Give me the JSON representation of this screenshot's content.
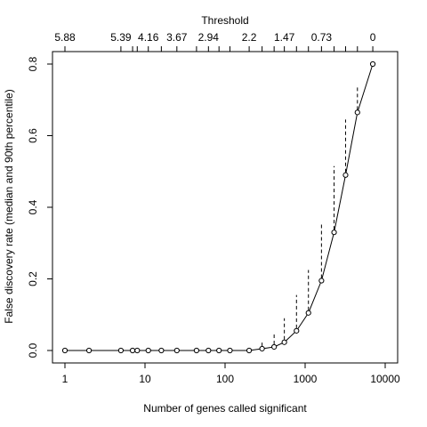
{
  "chart_data": {
    "type": "scatter",
    "title": "",
    "xlabel": "Number of genes called significant",
    "ylabel": "False discovery rate (median and 90th percentile)",
    "top_axis_label": "Threshold",
    "x_scale": "log",
    "xlim": [
      1,
      10000
    ],
    "ylim": [
      0,
      0.8
    ],
    "grid": false,
    "x_ticks": [
      1,
      10,
      100,
      1000,
      10000
    ],
    "x_tick_labels": [
      "1",
      "10",
      "100",
      "1000",
      "10000"
    ],
    "y_ticks": [
      0.0,
      0.2,
      0.4,
      0.6,
      0.8
    ],
    "y_tick_labels": [
      "0.0",
      "0.2",
      "0.4",
      "0.6",
      "0.8"
    ],
    "top_ticks": [
      {
        "x": 1,
        "label": "5.88"
      },
      {
        "x": 5,
        "label": "5.39"
      },
      {
        "x": 7,
        "label": ""
      },
      {
        "x": 8,
        "label": ""
      },
      {
        "x": 11,
        "label": "4.16"
      },
      {
        "x": 16,
        "label": ""
      },
      {
        "x": 25,
        "label": "3.67"
      },
      {
        "x": 44,
        "label": ""
      },
      {
        "x": 62,
        "label": "2.94"
      },
      {
        "x": 84,
        "label": ""
      },
      {
        "x": 115,
        "label": ""
      },
      {
        "x": 200,
        "label": "2.2"
      },
      {
        "x": 290,
        "label": ""
      },
      {
        "x": 410,
        "label": ""
      },
      {
        "x": 550,
        "label": "1.47"
      },
      {
        "x": 780,
        "label": ""
      },
      {
        "x": 1100,
        "label": ""
      },
      {
        "x": 1600,
        "label": "0.73"
      },
      {
        "x": 2300,
        "label": ""
      },
      {
        "x": 3200,
        "label": ""
      },
      {
        "x": 4500,
        "label": ""
      },
      {
        "x": 7000,
        "label": "0"
      }
    ],
    "series": [
      {
        "points": [
          {
            "x": 1,
            "median": 0.0,
            "p90": 0.0
          },
          {
            "x": 2,
            "median": 0.0,
            "p90": 0.0
          },
          {
            "x": 5,
            "median": 0.0,
            "p90": 0.0
          },
          {
            "x": 7,
            "median": 0.0,
            "p90": 0.0
          },
          {
            "x": 8,
            "median": 0.0,
            "p90": 0.0
          },
          {
            "x": 11,
            "median": 0.0,
            "p90": 0.0
          },
          {
            "x": 16,
            "median": 0.0,
            "p90": 0.0
          },
          {
            "x": 25,
            "median": 0.0,
            "p90": 0.0
          },
          {
            "x": 44,
            "median": 0.0,
            "p90": 0.0
          },
          {
            "x": 62,
            "median": 0.0,
            "p90": 0.0
          },
          {
            "x": 84,
            "median": 0.0,
            "p90": 0.0
          },
          {
            "x": 115,
            "median": 0.0,
            "p90": 0.0
          },
          {
            "x": 200,
            "median": 0.0,
            "p90": 0.005
          },
          {
            "x": 290,
            "median": 0.005,
            "p90": 0.022
          },
          {
            "x": 410,
            "median": 0.01,
            "p90": 0.045
          },
          {
            "x": 550,
            "median": 0.023,
            "p90": 0.09
          },
          {
            "x": 780,
            "median": 0.055,
            "p90": 0.155
          },
          {
            "x": 1100,
            "median": 0.105,
            "p90": 0.225
          },
          {
            "x": 1600,
            "median": 0.195,
            "p90": 0.355
          },
          {
            "x": 2300,
            "median": 0.33,
            "p90": 0.515
          },
          {
            "x": 3200,
            "median": 0.49,
            "p90": 0.645
          },
          {
            "x": 4500,
            "median": 0.665,
            "p90": 0.735
          },
          {
            "x": 7000,
            "median": 0.8,
            "p90": 0.8
          }
        ]
      }
    ]
  }
}
